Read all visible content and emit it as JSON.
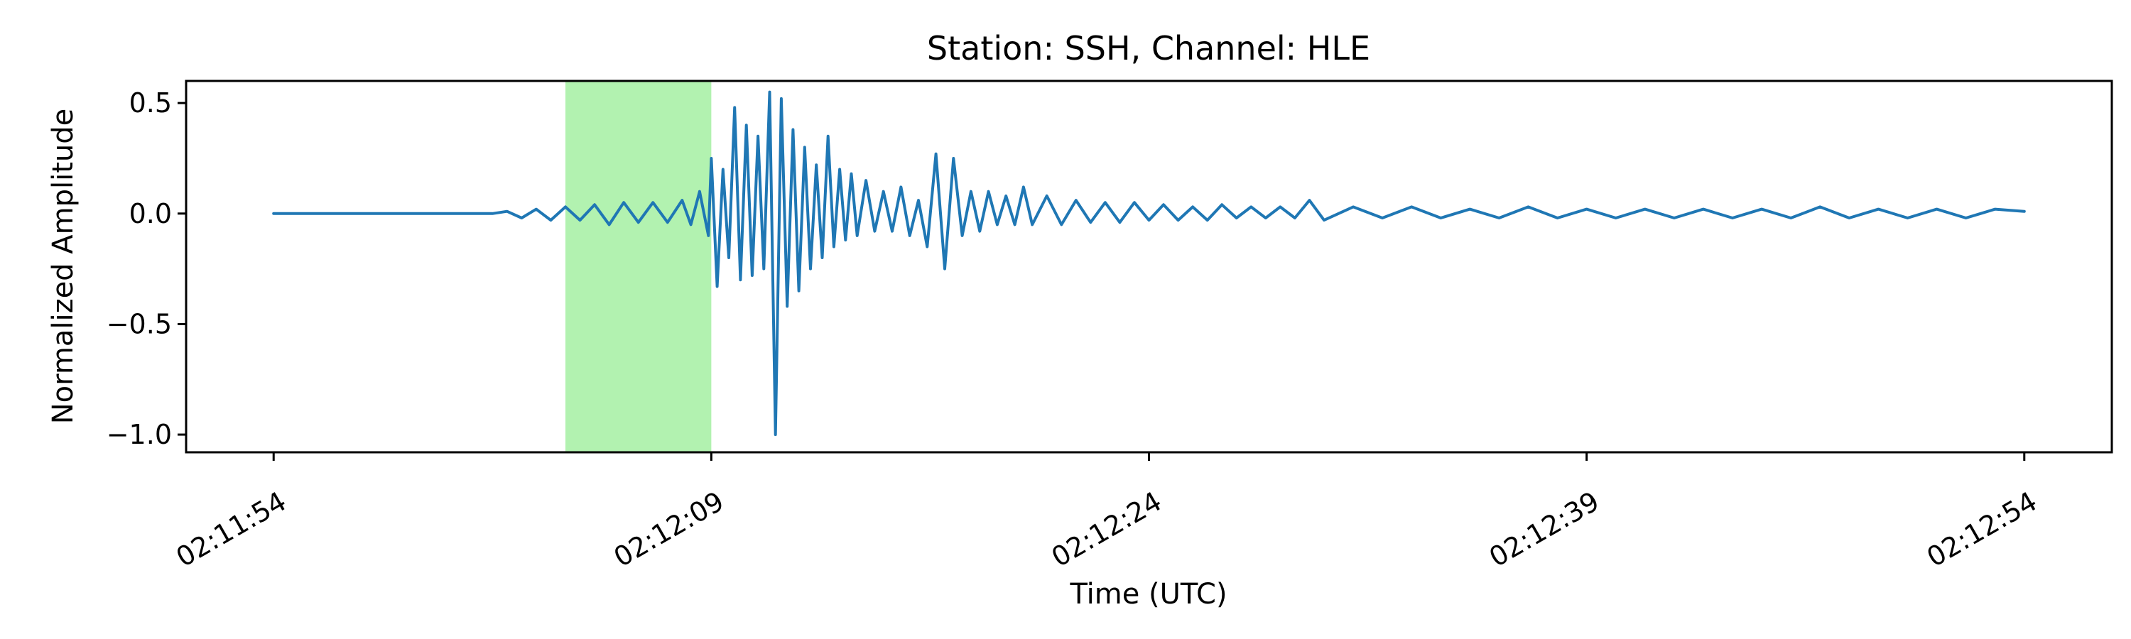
{
  "chart_data": {
    "type": "line",
    "title": "Station: SSH, Channel: HLE",
    "xlabel": "Time (UTC)",
    "ylabel": "Normalized Amplitude",
    "x_tick_labels": [
      "02:11:54",
      "02:12:09",
      "02:12:24",
      "02:12:39",
      "02:12:54"
    ],
    "x_tick_values_s": [
      0,
      15,
      30,
      45,
      60
    ],
    "y_ticks": [
      0.5,
      0.0,
      -0.5,
      -1.0
    ],
    "y_tick_labels": [
      "0.5",
      "0.0",
      "−0.5",
      "−1.0"
    ],
    "xlim_s": [
      -3,
      63
    ],
    "ylim": [
      -1.08,
      0.6
    ],
    "grid": false,
    "line_color": "#1f77b4",
    "highlight": {
      "x_start_s": 10,
      "x_end_s": 15,
      "color": "#b2f2b0"
    },
    "series": [
      {
        "x": [
          0,
          5,
          7.5,
          8.0,
          8.5,
          9.0,
          9.5,
          10.0,
          10.5,
          11.0,
          11.5,
          12.0,
          12.5,
          13.0,
          13.5,
          14.0,
          14.3,
          14.6,
          14.9,
          15.0,
          15.2,
          15.4,
          15.6,
          15.8,
          16.0,
          16.2,
          16.4,
          16.6,
          16.8,
          17.0,
          17.2,
          17.4,
          17.6,
          17.8,
          18.0,
          18.2,
          18.4,
          18.6,
          18.8,
          19.0,
          19.2,
          19.4,
          19.6,
          19.8,
          20.0,
          20.3,
          20.6,
          20.9,
          21.2,
          21.5,
          21.8,
          22.1,
          22.4,
          22.7,
          23.0,
          23.3,
          23.6,
          23.9,
          24.2,
          24.5,
          24.8,
          25.1,
          25.4,
          25.7,
          26.0,
          26.5,
          27.0,
          27.5,
          28.0,
          28.5,
          29.0,
          29.5,
          30.0,
          30.5,
          31.0,
          31.5,
          32.0,
          32.5,
          33.0,
          33.5,
          34.0,
          34.5,
          35.0,
          35.5,
          36.0,
          37.0,
          38.0,
          39.0,
          40.0,
          41.0,
          42.0,
          43.0,
          44.0,
          45.0,
          46.0,
          47.0,
          48.0,
          49.0,
          50.0,
          51.0,
          52.0,
          53.0,
          54.0,
          55.0,
          56.0,
          57.0,
          58.0,
          59.0,
          60.0
        ],
        "y": [
          0.0,
          0.0,
          0.0,
          0.01,
          -0.02,
          0.02,
          -0.03,
          0.03,
          -0.03,
          0.04,
          -0.05,
          0.05,
          -0.04,
          0.05,
          -0.04,
          0.06,
          -0.05,
          0.1,
          -0.1,
          0.25,
          -0.33,
          0.2,
          -0.2,
          0.48,
          -0.3,
          0.4,
          -0.28,
          0.35,
          -0.25,
          0.55,
          -1.0,
          0.52,
          -0.42,
          0.38,
          -0.35,
          0.3,
          -0.25,
          0.22,
          -0.2,
          0.35,
          -0.15,
          0.2,
          -0.12,
          0.18,
          -0.1,
          0.15,
          -0.08,
          0.1,
          -0.08,
          0.12,
          -0.1,
          0.06,
          -0.15,
          0.27,
          -0.25,
          0.25,
          -0.1,
          0.1,
          -0.08,
          0.1,
          -0.05,
          0.08,
          -0.05,
          0.12,
          -0.05,
          0.08,
          -0.05,
          0.06,
          -0.04,
          0.05,
          -0.04,
          0.05,
          -0.03,
          0.04,
          -0.03,
          0.03,
          -0.03,
          0.04,
          -0.02,
          0.03,
          -0.02,
          0.03,
          -0.02,
          0.06,
          -0.03,
          0.03,
          -0.02,
          0.03,
          -0.02,
          0.02,
          -0.02,
          0.03,
          -0.02,
          0.02,
          -0.02,
          0.02,
          -0.02,
          0.02,
          -0.02,
          0.02,
          -0.02,
          0.03,
          -0.02,
          0.02,
          -0.02,
          0.02,
          -0.02,
          0.02,
          0.01
        ]
      }
    ]
  }
}
